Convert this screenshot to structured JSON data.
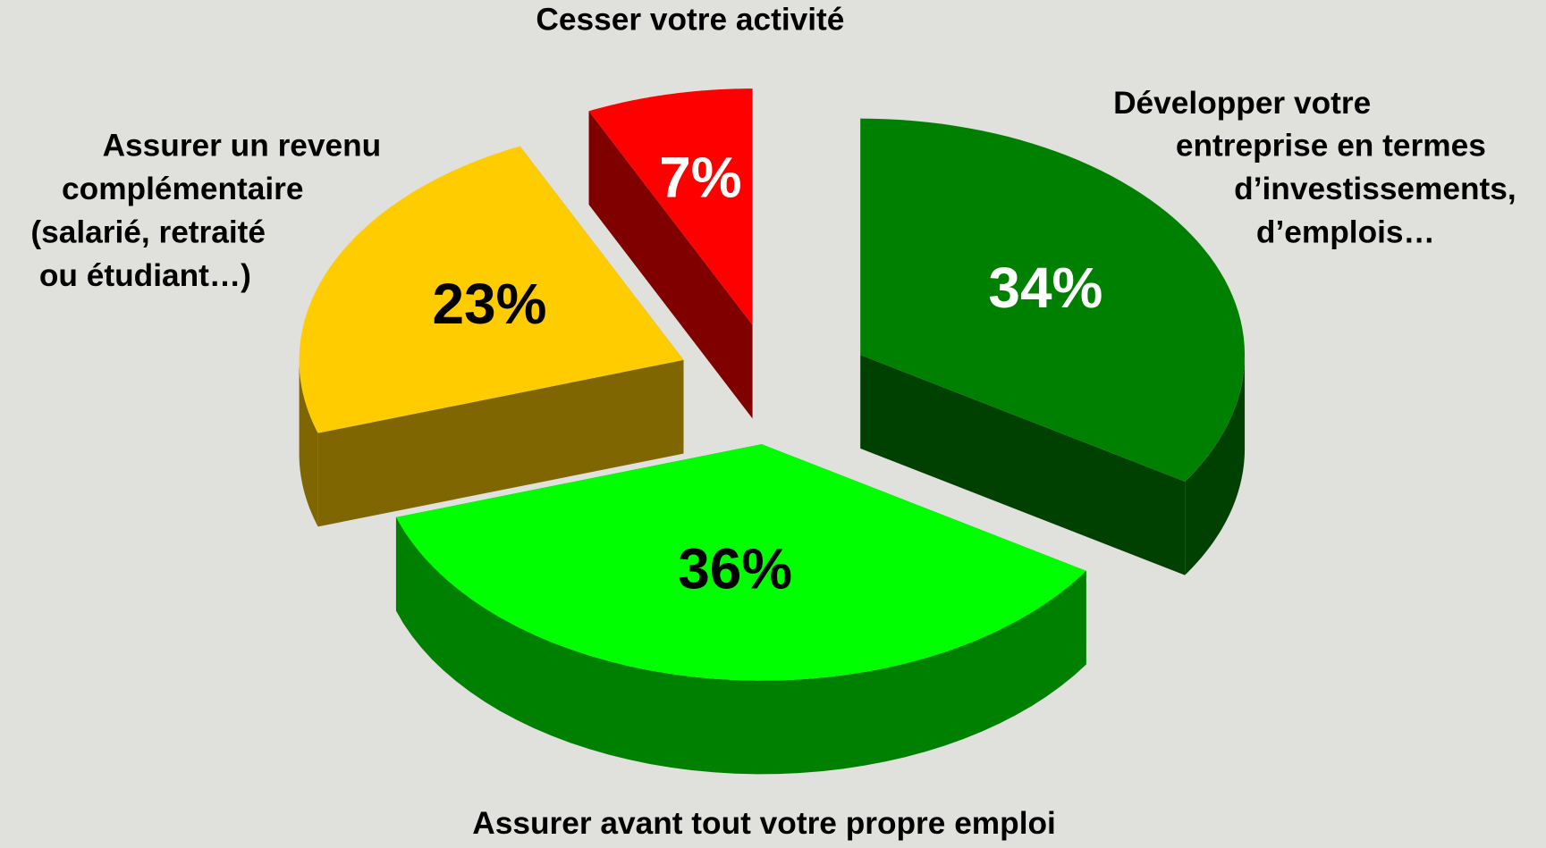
{
  "chart_data": {
    "type": "pie3d",
    "categories": [
      [
        "Développer votre",
        "entreprise en termes",
        "d’investissements,",
        "d’emplois…"
      ],
      [
        "Assurer avant tout votre propre emploi"
      ],
      [
        "Assurer un revenu",
        "complémentaire",
        "(salarié, retraité",
        "ou étudiant…)"
      ],
      [
        "Cesser votre activité"
      ]
    ],
    "values": [
      34,
      36,
      23,
      7
    ],
    "value_labels": [
      "34%",
      "36%",
      "23%",
      "7%"
    ],
    "colors": [
      "#008000",
      "#00ff00",
      "#ffcc00",
      "#ff0000"
    ],
    "side_colors": [
      "#004000",
      "#008000",
      "#806600",
      "#800000"
    ],
    "value_label_colors": [
      "#ffffff",
      "#000000",
      "#000000",
      "#ffffff"
    ]
  }
}
